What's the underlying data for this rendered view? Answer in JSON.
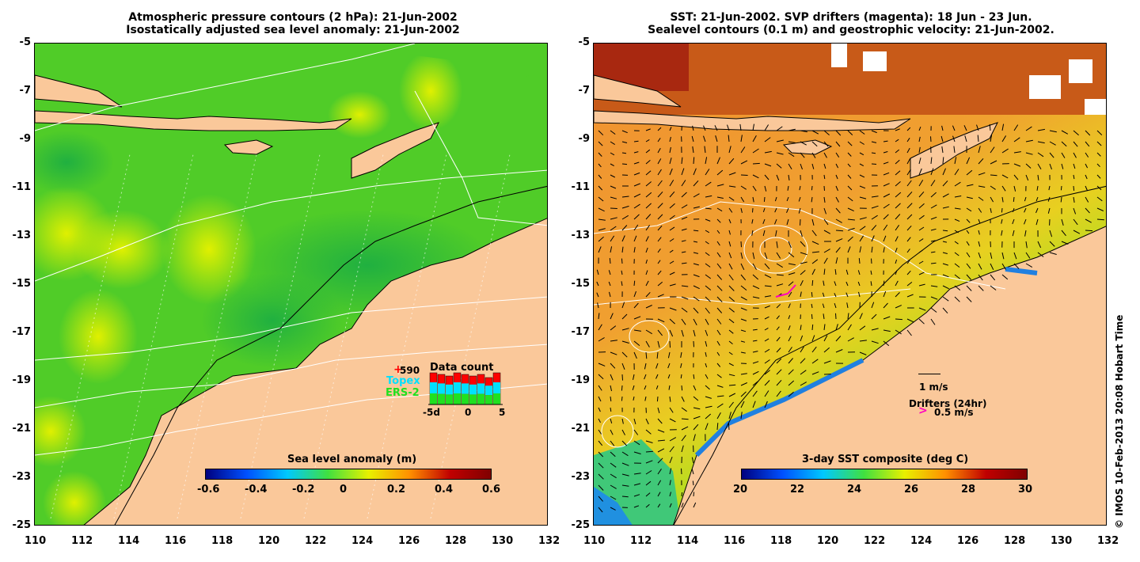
{
  "left": {
    "title_line1": "Atmospheric pressure contours (2 hPa): 21-Jun-2002",
    "title_line2": "Isostatically adjusted sea level anomaly: 21-Jun-2002",
    "colorbar_title": "Sea level anomaly (m)",
    "colorbar_ticks": [
      "-0.6",
      "-0.4",
      "-0.2",
      "0",
      "0.2",
      "0.4",
      "0.6"
    ],
    "colorbar_colors": [
      "#00007f",
      "#0050ff",
      "#00c8ff",
      "#40e040",
      "#e8f000",
      "#ff9000",
      "#c00000",
      "#800000"
    ],
    "inset": {
      "count_value": "590",
      "legend": [
        "Topex",
        "ERS-2"
      ],
      "legend_colors": [
        "#00e0ff",
        "#20e020"
      ],
      "title": "Data count",
      "xticks": [
        "-5d",
        "0",
        "5"
      ],
      "bar_red_fraction": [
        1.0,
        0.95,
        0.9,
        1.0,
        0.95,
        0.9,
        0.95,
        0.85,
        1.0
      ]
    }
  },
  "right": {
    "title_line1": "SST: 21-Jun-2002. SVP drifters (magenta): 18 Jun - 23 Jun.",
    "title_line2": "Sealevel contours (0.1 m) and geostrophic velocity: 21-Jun-2002.",
    "colorbar_title": "3-day SST composite (deg C)",
    "colorbar_ticks": [
      "20",
      "22",
      "24",
      "26",
      "28",
      "30"
    ],
    "colorbar_colors": [
      "#00007f",
      "#0050ff",
      "#00c8ff",
      "#40e040",
      "#e8f000",
      "#ff9000",
      "#c00000",
      "#800000"
    ],
    "velocity_scale_label": "1 m/s",
    "drifters_label": "Drifters (24hr)",
    "drifter_scale_label": "0.5 m/s"
  },
  "axes": {
    "y_ticks": [
      "-5",
      "-7",
      "-9",
      "-11",
      "-13",
      "-15",
      "-17",
      "-19",
      "-21",
      "-23",
      "-25"
    ],
    "x_ticks": [
      "110",
      "112",
      "114",
      "116",
      "118",
      "120",
      "122",
      "124",
      "126",
      "128",
      "130",
      "132"
    ]
  },
  "colors": {
    "land": "#fac89a",
    "ocean_left": "#48c830",
    "ocean_right": "#f0a030"
  },
  "copyright": "© IMOS 10-Feb-2013 20:08 Hobart Time"
}
